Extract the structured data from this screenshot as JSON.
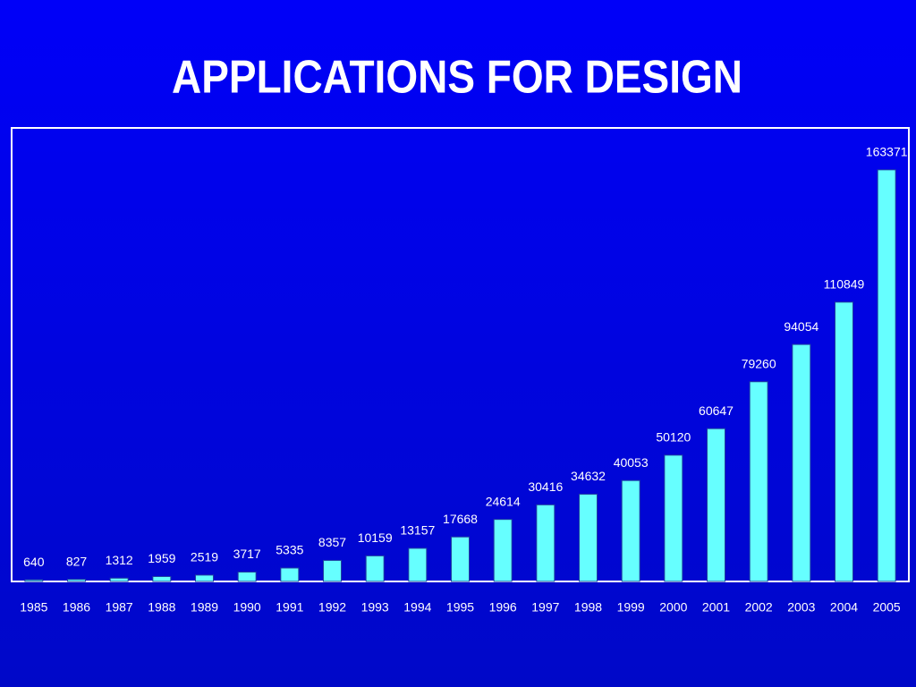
{
  "chart_data": {
    "type": "bar",
    "title": "APPLICATIONS FOR DESIGN",
    "categories": [
      "1985",
      "1986",
      "1987",
      "1988",
      "1989",
      "1990",
      "1991",
      "1992",
      "1993",
      "1994",
      "1995",
      "1996",
      "1997",
      "1998",
      "1999",
      "2000",
      "2001",
      "2002",
      "2003",
      "2004",
      "2005"
    ],
    "values": [
      640,
      827,
      1312,
      1959,
      2519,
      3717,
      5335,
      8357,
      10159,
      13157,
      17668,
      24614,
      30416,
      34632,
      40053,
      50120,
      60647,
      79260,
      94054,
      110849,
      163371
    ],
    "color": "#66ffff",
    "ylim": [
      0,
      180000
    ]
  }
}
